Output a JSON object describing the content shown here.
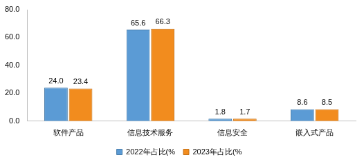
{
  "chart_data": {
    "type": "bar",
    "categories": [
      "软件产品",
      "信息技术服务",
      "信息安全",
      "嵌入式产品"
    ],
    "series": [
      {
        "name": "2022年占比(%",
        "color": "#5b9bd5",
        "values": [
          24.0,
          65.6,
          1.8,
          8.6
        ],
        "value_labels": [
          "24.0",
          "65.6",
          "1.8",
          "8.6"
        ]
      },
      {
        "name": "2023年占比(%",
        "color": "#f28c1e",
        "values": [
          23.4,
          66.3,
          1.7,
          8.5
        ],
        "value_labels": [
          "23.4",
          "66.3",
          "1.7",
          "8.5"
        ]
      }
    ],
    "ylim": [
      0,
      80
    ],
    "yticks": [
      {
        "value": 0,
        "label": "0.0"
      },
      {
        "value": 20,
        "label": "20.0"
      },
      {
        "value": 40,
        "label": "40.0"
      },
      {
        "value": 60,
        "label": "60.0"
      },
      {
        "value": 80,
        "label": "80.0"
      }
    ],
    "grid": false,
    "legend": "bottom",
    "data_labels": true
  }
}
